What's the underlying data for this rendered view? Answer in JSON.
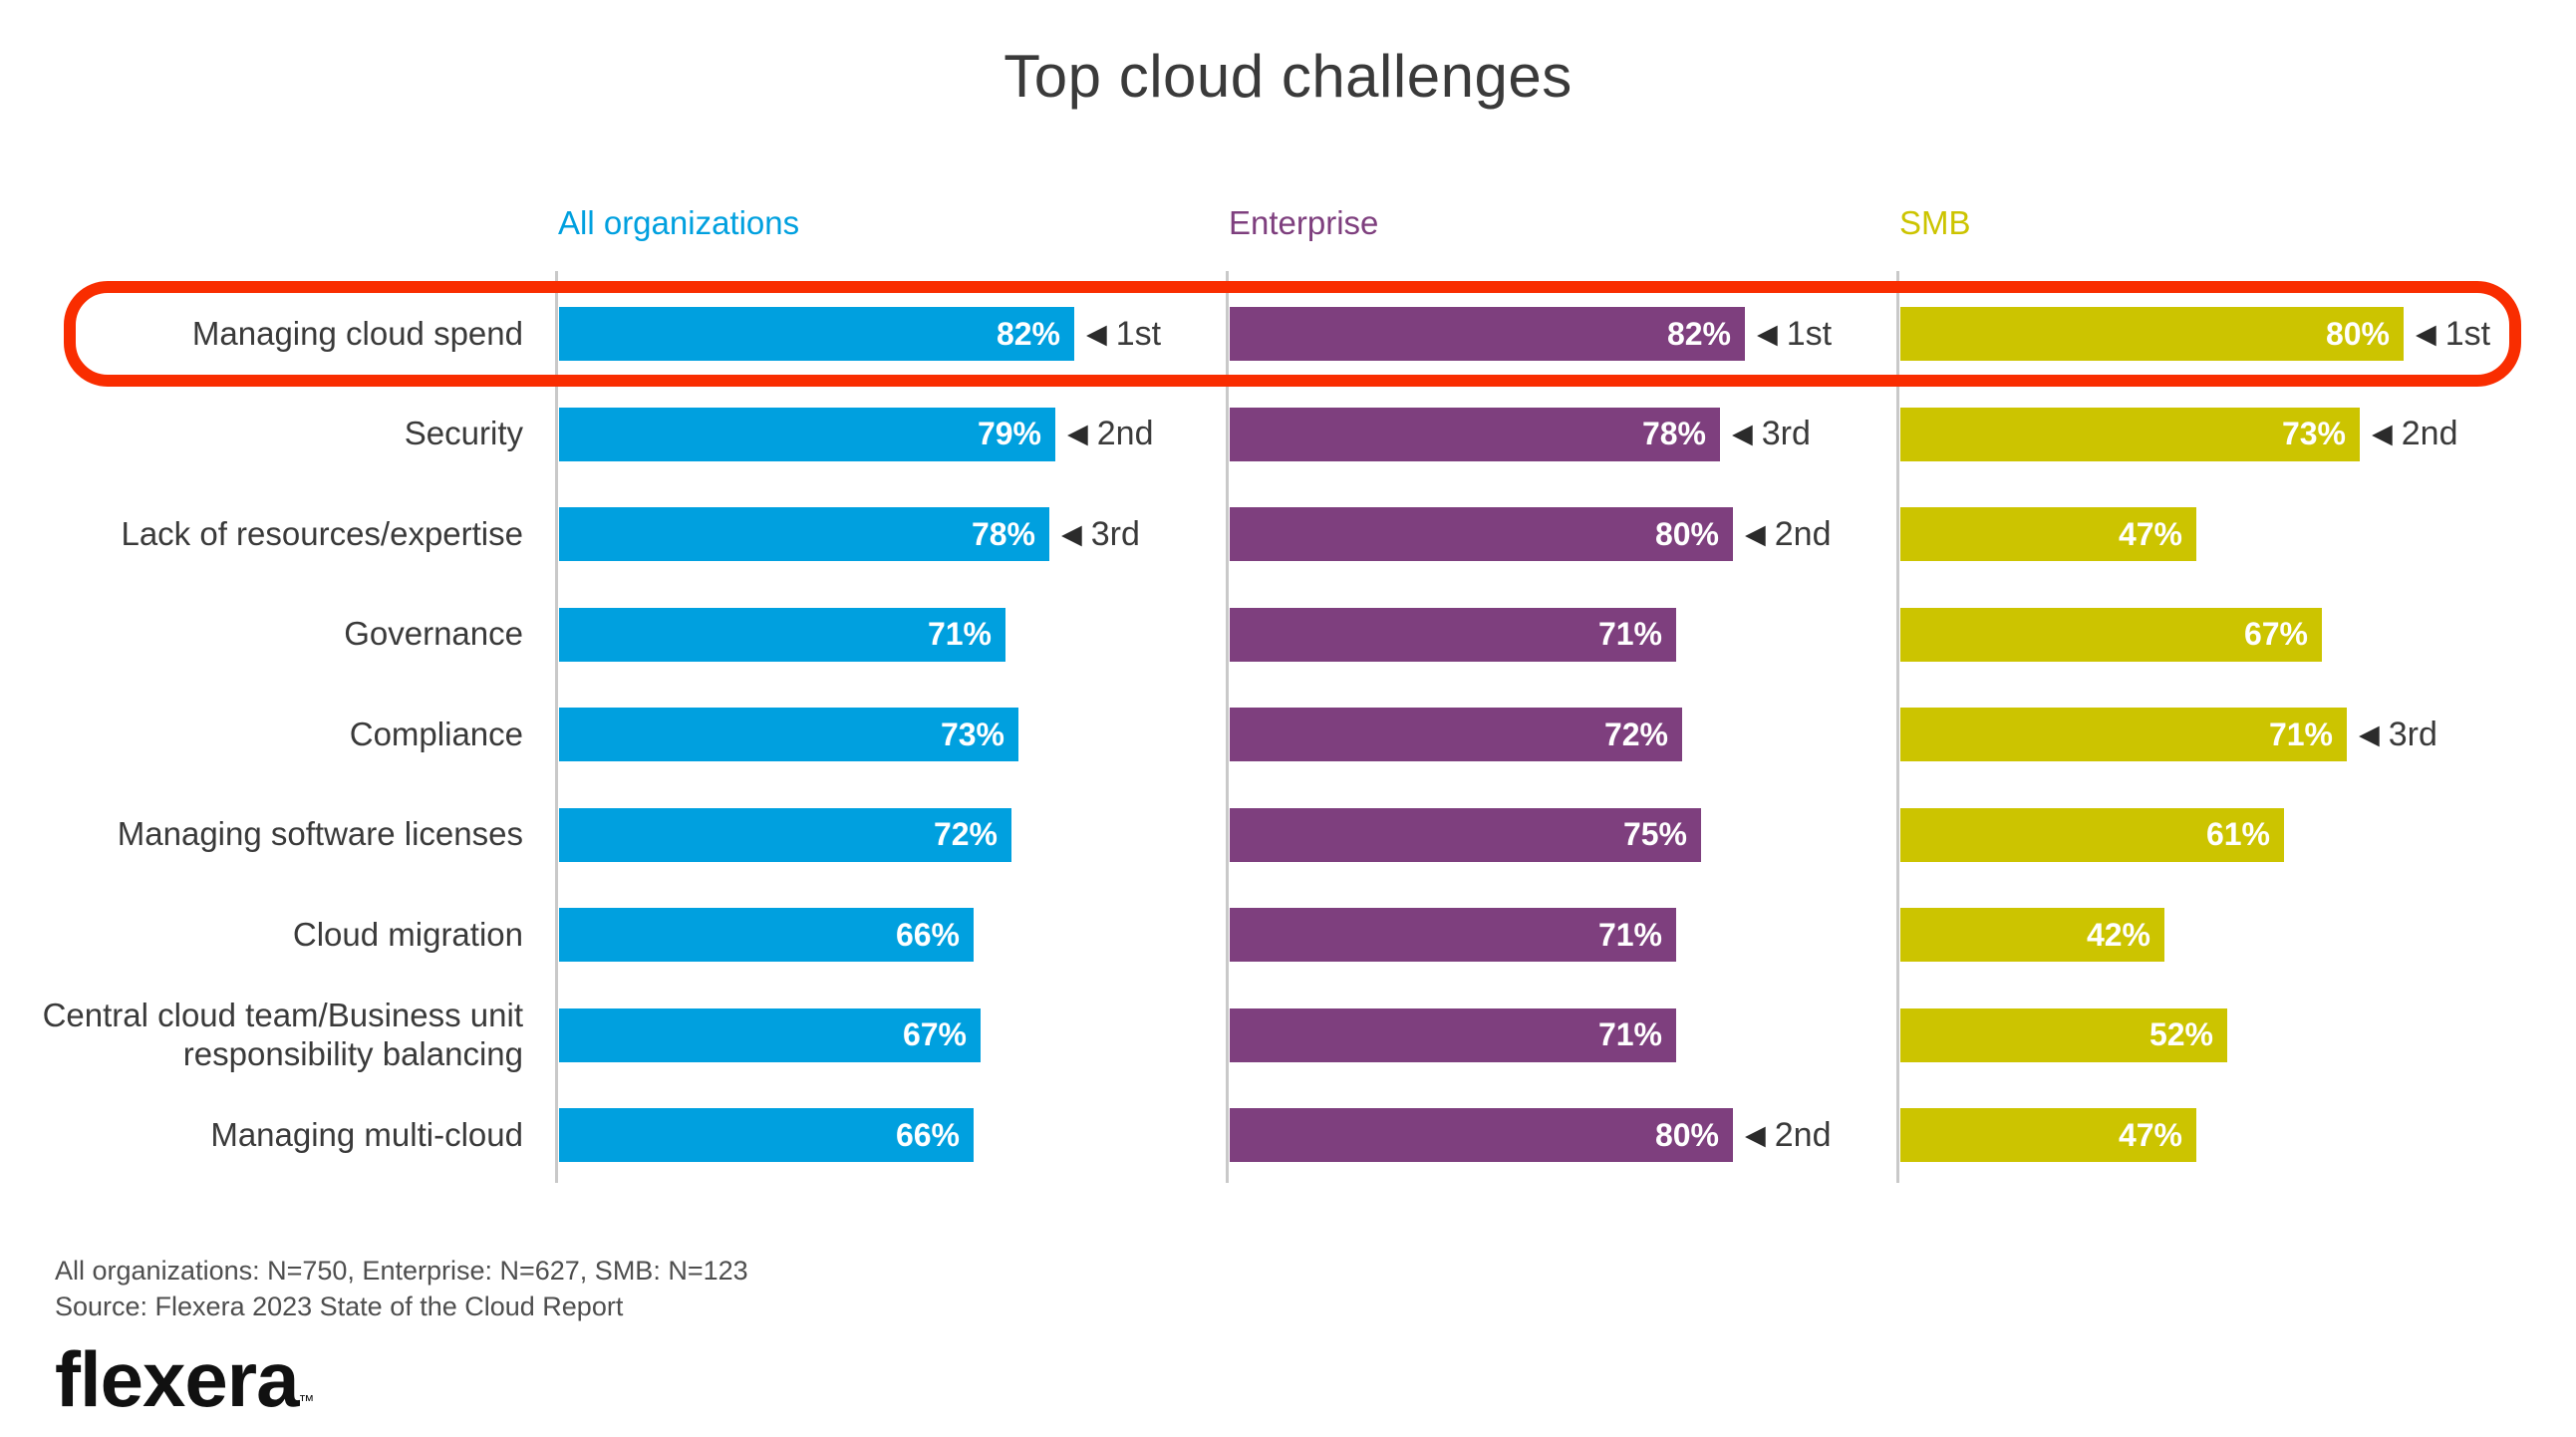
{
  "title": "Top cloud challenges",
  "colors": {
    "all_organizations": "#00A0DF",
    "enterprise": "#7E3F7E",
    "smb": "#CCC400",
    "highlight_outline": "#F92D00",
    "axis_line": "#C9C9C9",
    "title_text": "#3A3A3A",
    "rank_text": "#2B2B2B",
    "footer_text": "#4E4E4E",
    "bar_value_text": "#FFFFFF"
  },
  "chart_data": {
    "type": "bar",
    "orientation": "horizontal",
    "unit": "%",
    "xlim": [
      0,
      100
    ],
    "grid": false,
    "value_labels": "inside-right",
    "rank_marker": "◀",
    "highlighted_category": "Managing cloud spend",
    "categories": [
      "Managing cloud spend",
      "Security",
      "Lack of resources/expertise",
      "Governance",
      "Compliance",
      "Managing software licenses",
      "Cloud migration",
      "Central cloud team/Business unit responsibility balancing",
      "Managing multi-cloud"
    ],
    "series": [
      {
        "name": "All organizations",
        "color": "#00A0DF",
        "values": [
          82,
          79,
          78,
          71,
          73,
          72,
          66,
          67,
          66
        ],
        "ranks": [
          "1st",
          "2nd",
          "3rd",
          "",
          "",
          "",
          "",
          "",
          ""
        ]
      },
      {
        "name": "Enterprise",
        "color": "#7E3F7E",
        "values": [
          82,
          78,
          80,
          71,
          72,
          75,
          71,
          71,
          80
        ],
        "ranks": [
          "1st",
          "3rd",
          "2nd",
          "",
          "",
          "",
          "",
          "",
          "2nd"
        ]
      },
      {
        "name": "SMB",
        "color": "#CCC400",
        "values": [
          80,
          73,
          47,
          67,
          71,
          61,
          42,
          52,
          47
        ],
        "ranks": [
          "1st",
          "2nd",
          "",
          "",
          "3rd",
          "",
          "",
          "",
          ""
        ]
      }
    ]
  },
  "footer": {
    "note": "All organizations: N=750, Enterprise: N=627, SMB: N=123",
    "source": "Source: Flexera 2023 State of the Cloud Report",
    "logo": "flexera",
    "logo_tm": "™"
  }
}
